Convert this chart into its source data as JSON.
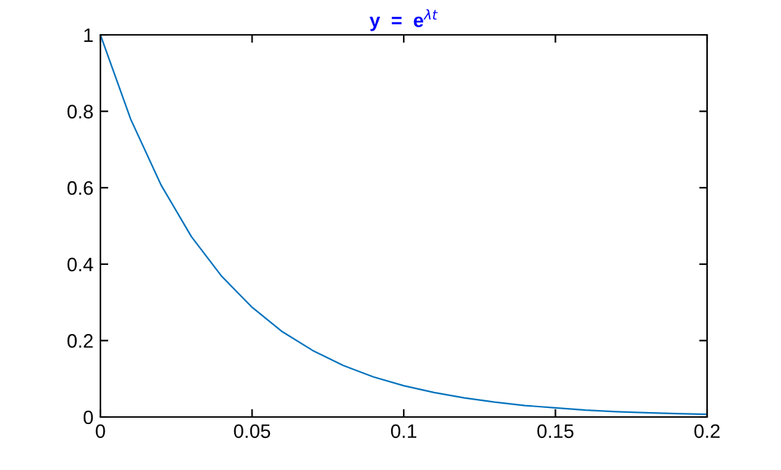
{
  "chart_data": {
    "type": "line",
    "title": "y  =  e$^{λt}$",
    "x": [
      0,
      0.01,
      0.02,
      0.03,
      0.04,
      0.05,
      0.06,
      0.07,
      0.08,
      0.09,
      0.1,
      0.11,
      0.12,
      0.13,
      0.14,
      0.15,
      0.16,
      0.17,
      0.18,
      0.19,
      0.2
    ],
    "series": [
      {
        "color": "#0072bd",
        "values": [
          1,
          0.779,
          0.607,
          0.472,
          0.368,
          0.287,
          0.223,
          0.174,
          0.135,
          0.105,
          0.082,
          0.064,
          0.05,
          0.039,
          0.03,
          0.024,
          0.018,
          0.014,
          0.011,
          0.009,
          0.007
        ]
      }
    ],
    "xlim": [
      0,
      0.2
    ],
    "xticks": [
      0,
      0.05,
      0.1,
      0.15,
      0.2
    ],
    "ylim": [
      0,
      1
    ],
    "yticks": [
      0,
      0.2,
      0.4,
      0.6,
      0.8,
      1
    ],
    "grid": false,
    "legend": false,
    "marker": "none",
    "line_style": "solid"
  }
}
